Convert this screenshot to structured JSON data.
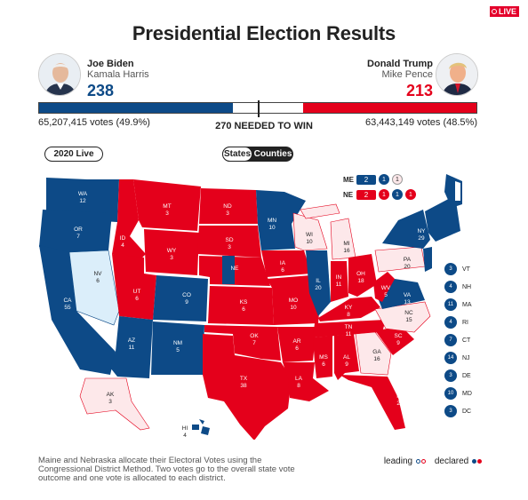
{
  "live_label": "LIVE",
  "title": "Presidential Election Results",
  "colors": {
    "dem": "#0d4a87",
    "rep": "#e4001b",
    "dem_lean": "#dbeefa",
    "rep_lean": "#fde8ea"
  },
  "candidates": {
    "left": {
      "name": "Joe Biden",
      "running_mate": "Kamala Harris",
      "electoral_votes": "238",
      "popular_votes": "65,207,415 votes (49.9%)",
      "avatar_icon": "candidate-photo"
    },
    "right": {
      "name": "Donald Trump",
      "running_mate": "Mike Pence",
      "electoral_votes": "213",
      "popular_votes": "63,443,149 votes (48.5%)",
      "avatar_icon": "candidate-photo"
    }
  },
  "ev_bar": {
    "total": 538,
    "dem": 238,
    "rep": 213
  },
  "needed_label": "270 NEEDED TO WIN",
  "controls": {
    "year_select": "2020 Live",
    "toggle_states": "States",
    "toggle_counties": "Counties"
  },
  "split_states": {
    "me": {
      "label": "ME",
      "total": "2",
      "districts": [
        "1",
        "1"
      ]
    },
    "ne": {
      "label": "NE",
      "total": "2",
      "districts": [
        "1",
        "1",
        "1"
      ]
    }
  },
  "map_labels": [
    {
      "st": "WA",
      "ev": "12"
    },
    {
      "st": "OR",
      "ev": "7"
    },
    {
      "st": "CA",
      "ev": "55"
    },
    {
      "st": "NV",
      "ev": "6"
    },
    {
      "st": "ID",
      "ev": "4"
    },
    {
      "st": "MT",
      "ev": "3"
    },
    {
      "st": "WY",
      "ev": "3"
    },
    {
      "st": "UT",
      "ev": "6"
    },
    {
      "st": "AZ",
      "ev": "11"
    },
    {
      "st": "CO",
      "ev": "9"
    },
    {
      "st": "NM",
      "ev": "5"
    },
    {
      "st": "ND",
      "ev": "3"
    },
    {
      "st": "SD",
      "ev": "3"
    },
    {
      "st": "NE",
      "ev": ""
    },
    {
      "st": "KS",
      "ev": "6"
    },
    {
      "st": "OK",
      "ev": "7"
    },
    {
      "st": "TX",
      "ev": "38"
    },
    {
      "st": "MN",
      "ev": "10"
    },
    {
      "st": "IA",
      "ev": "6"
    },
    {
      "st": "MO",
      "ev": "10"
    },
    {
      "st": "AR",
      "ev": "6"
    },
    {
      "st": "LA",
      "ev": "8"
    },
    {
      "st": "WI",
      "ev": "10"
    },
    {
      "st": "IL",
      "ev": "20"
    },
    {
      "st": "MI",
      "ev": "16"
    },
    {
      "st": "IN",
      "ev": "11"
    },
    {
      "st": "OH",
      "ev": "18"
    },
    {
      "st": "KY",
      "ev": "8"
    },
    {
      "st": "TN",
      "ev": "11"
    },
    {
      "st": "MS",
      "ev": "6"
    },
    {
      "st": "AL",
      "ev": "9"
    },
    {
      "st": "GA",
      "ev": "16"
    },
    {
      "st": "FL",
      "ev": "29"
    },
    {
      "st": "SC",
      "ev": "9"
    },
    {
      "st": "NC",
      "ev": "15"
    },
    {
      "st": "VA",
      "ev": "13"
    },
    {
      "st": "WV",
      "ev": "5"
    },
    {
      "st": "PA",
      "ev": "20"
    },
    {
      "st": "NY",
      "ev": "29"
    },
    {
      "st": "AK",
      "ev": "3"
    },
    {
      "st": "HI",
      "ev": "4"
    }
  ],
  "small_states": [
    {
      "st": "VT",
      "ev": "3"
    },
    {
      "st": "NH",
      "ev": "4"
    },
    {
      "st": "MA",
      "ev": "11"
    },
    {
      "st": "RI",
      "ev": "4"
    },
    {
      "st": "CT",
      "ev": "7"
    },
    {
      "st": "NJ",
      "ev": "14"
    },
    {
      "st": "DE",
      "ev": "3"
    },
    {
      "st": "MD",
      "ev": "10"
    },
    {
      "st": "DC",
      "ev": "3"
    }
  ],
  "footnote": "Maine and Nebraska allocate their Electoral Votes using the Congressional District Method. Two votes go to the overall state vote outcome and one vote is allocated to each district.",
  "legend": {
    "leading": "leading",
    "declared": "declared"
  }
}
